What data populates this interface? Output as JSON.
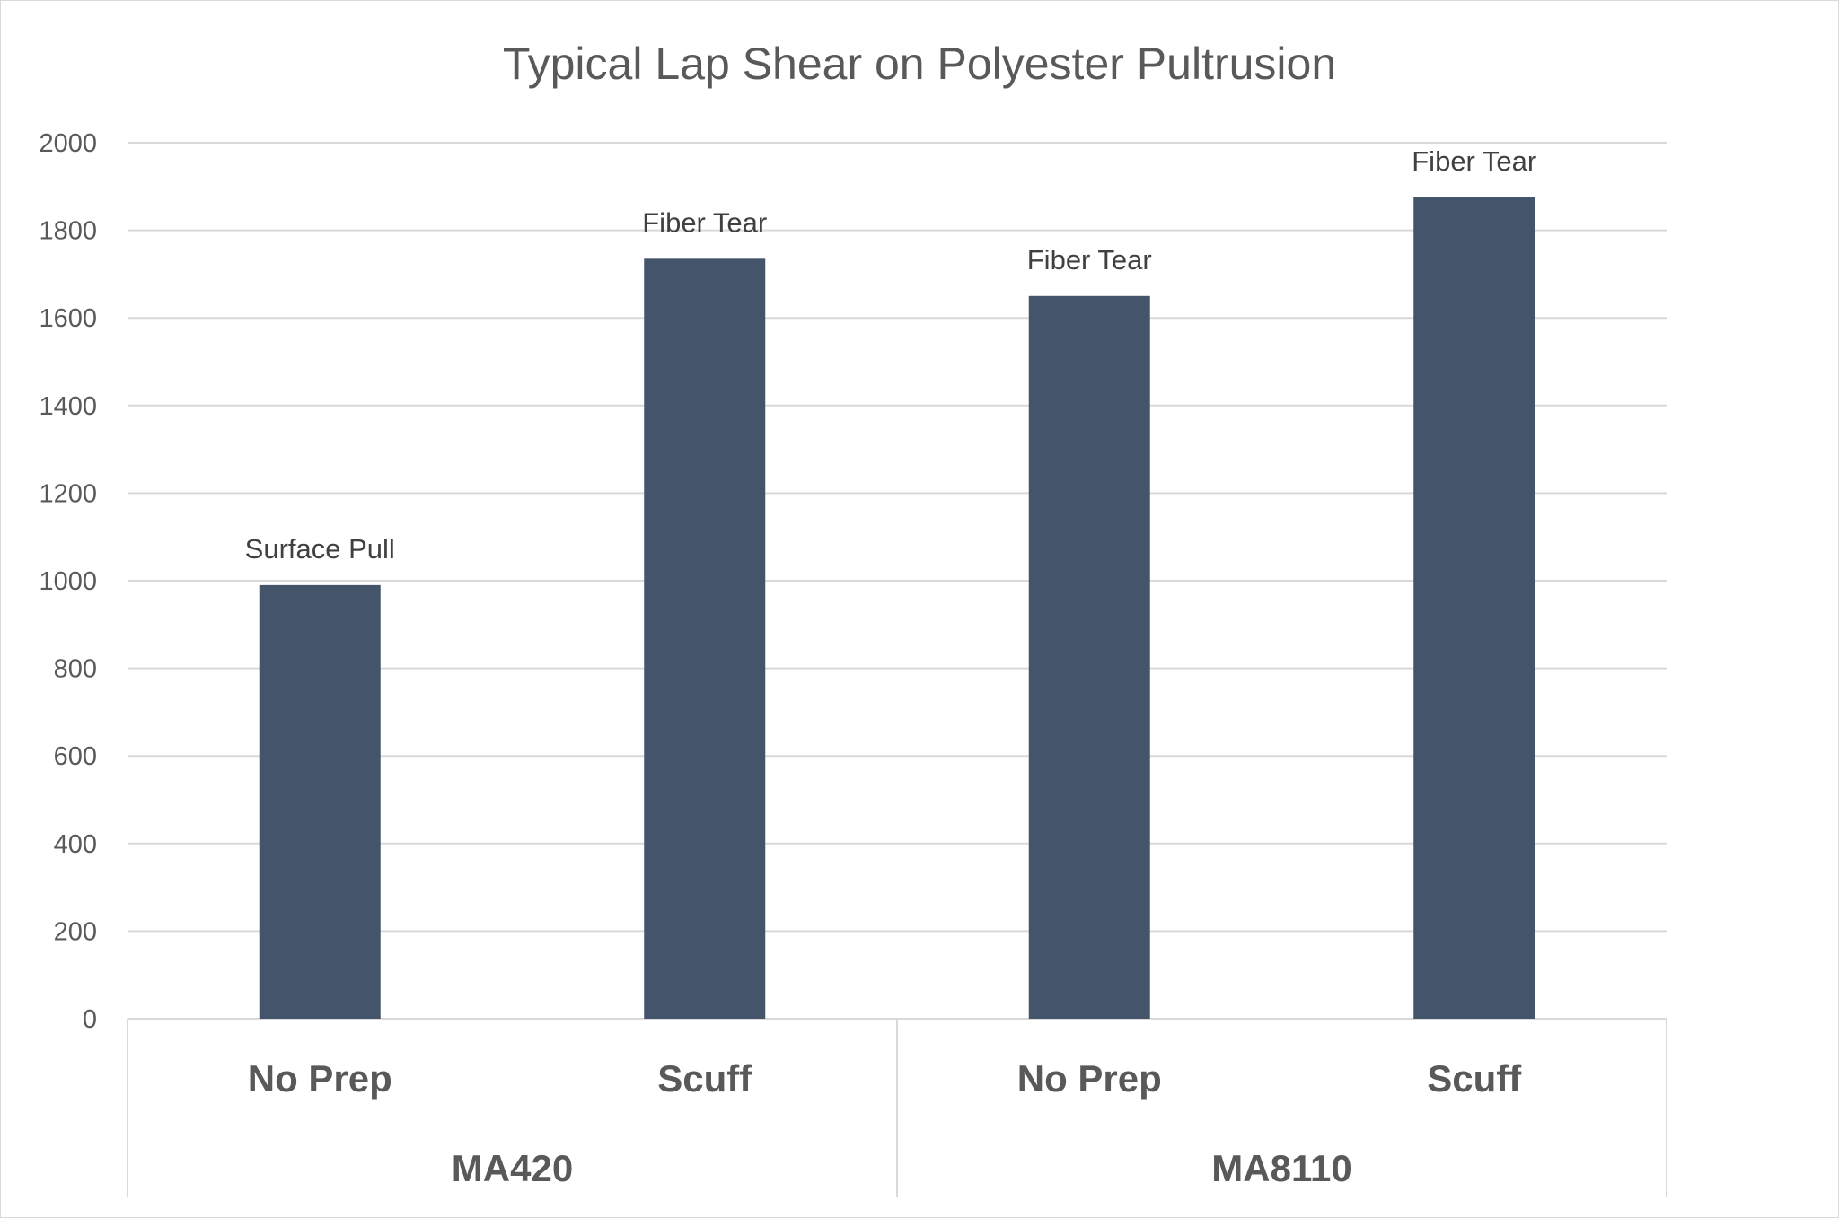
{
  "chart_data": {
    "type": "bar",
    "title": "Typical Lap Shear on Polyester Pultrusion",
    "xlabel": "",
    "ylabel": "",
    "ylim": [
      0,
      2000
    ],
    "yticks": [
      "0",
      "200",
      "400",
      "600",
      "800",
      "1000",
      "1200",
      "1400",
      "1600",
      "1800",
      "2000"
    ],
    "grid": true,
    "categories": [
      "No Prep",
      "Scuff",
      "No Prep",
      "Scuff"
    ],
    "groups": [
      {
        "label": "MA420",
        "span": [
          0,
          1
        ]
      },
      {
        "label": "MA8110",
        "span": [
          2,
          3
        ]
      }
    ],
    "values": [
      990,
      1735,
      1650,
      1875
    ],
    "data_labels": [
      "Surface Pull",
      "Fiber Tear",
      "Fiber Tear",
      "Fiber Tear"
    ],
    "colors": {
      "bar": "#44546a",
      "grid": "#d9d9d9",
      "text": "#595959"
    }
  }
}
